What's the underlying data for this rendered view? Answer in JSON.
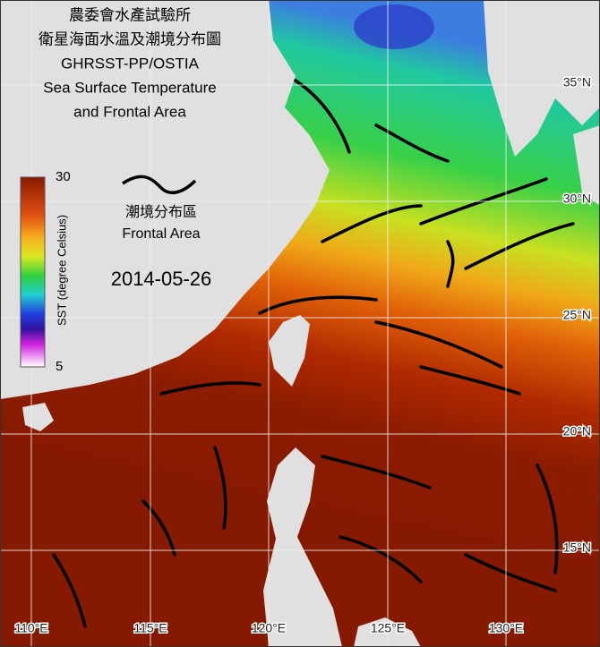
{
  "map": {
    "title_lines": [
      "農委會水產試驗所",
      "衛星海面水溫及潮境分布圖",
      "GHRSST-PP/OSTIA",
      "Sea Surface Temperature",
      "and Frontal Area"
    ],
    "legend": {
      "label_zh": "潮境分布區",
      "label_en": "Frontal Area"
    },
    "date": "2014-05-26",
    "colorbar": {
      "label": "SST (degree Celsius)",
      "range": [
        30,
        5
      ]
    },
    "lat_labels": [
      "35°N",
      "30°N",
      "25°N",
      "20°N",
      "15°N"
    ],
    "lon_labels": [
      "110°E",
      "115°E",
      "120°E",
      "125°E",
      "130°E"
    ]
  }
}
